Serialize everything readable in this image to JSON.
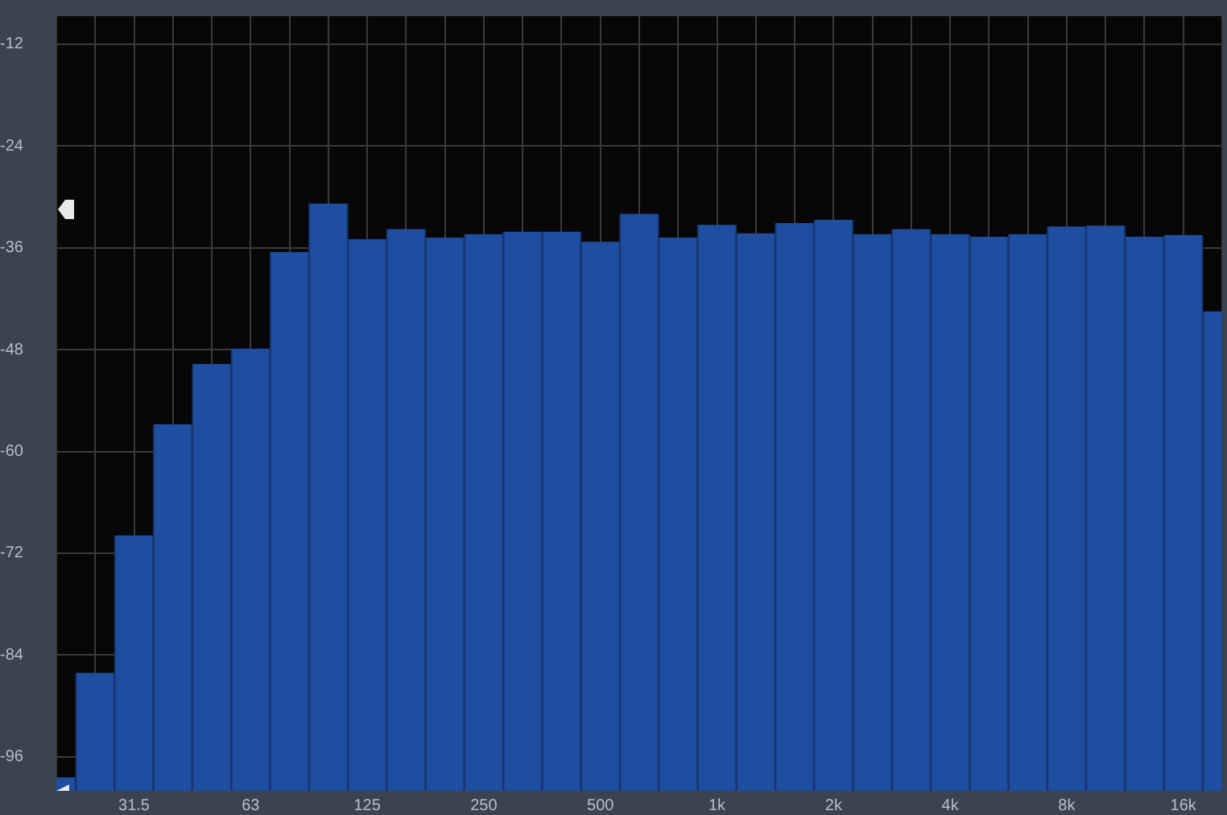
{
  "chart_data": {
    "type": "bar",
    "categories": [
      null,
      null,
      "31.5",
      null,
      null,
      "63",
      null,
      null,
      "125",
      null,
      null,
      "250",
      null,
      null,
      "500",
      null,
      null,
      "1k",
      null,
      null,
      "2k",
      null,
      null,
      "4k",
      null,
      null,
      "8k",
      null,
      null,
      "16k",
      null
    ],
    "base": [
      -100,
      -100,
      -100,
      -100,
      -100,
      -100,
      -100,
      -100,
      -100,
      -100,
      -100,
      -100,
      -100,
      -100,
      -100,
      -100,
      -100,
      -100,
      -100,
      -100,
      -100,
      -100,
      -100,
      -100,
      -100,
      -100,
      -100,
      -100,
      -100,
      -100,
      -100
    ],
    "values": [
      1.6,
      13.9,
      30.1,
      43.2,
      50.3,
      52.1,
      63.5,
      69.2,
      65.0,
      66.2,
      65.2,
      65.6,
      65.9,
      65.9,
      64.7,
      68.0,
      65.2,
      66.7,
      65.7,
      66.9,
      67.3,
      65.6,
      66.2,
      65.6,
      65.3,
      65.6,
      66.5,
      66.6,
      65.3,
      65.5,
      56.5
    ],
    "color": "#1f4ea0",
    "ylim": [
      -100,
      -8.7
    ],
    "yticks": [
      -12,
      -24,
      -36,
      -48,
      -60,
      -72,
      -84,
      -96
    ],
    "grid": true,
    "legend": false
  }
}
